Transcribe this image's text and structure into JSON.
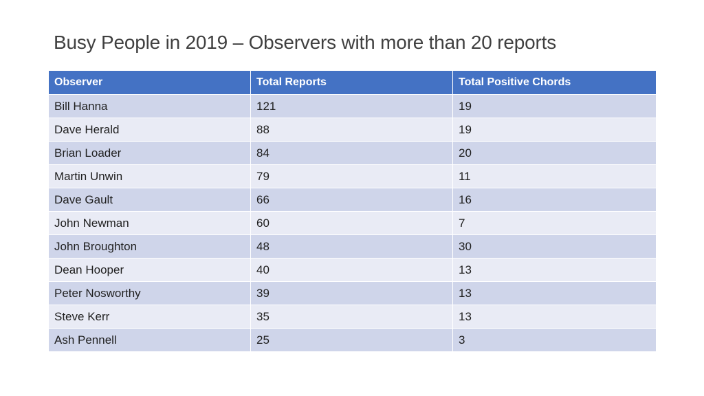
{
  "slide": {
    "title": "Busy People in 2019 – Observers with more than 20 reports"
  },
  "table": {
    "columns": [
      "Observer",
      "Total Reports",
      "Total Positive Chords"
    ],
    "rows": [
      [
        "Bill Hanna",
        "121",
        "19"
      ],
      [
        "Dave Herald",
        "88",
        "19"
      ],
      [
        "Brian Loader",
        "84",
        "20"
      ],
      [
        "Martin Unwin",
        "79",
        "11"
      ],
      [
        "Dave Gault",
        "66",
        "16"
      ],
      [
        "John Newman",
        "60",
        "7"
      ],
      [
        "John Broughton",
        "48",
        "30"
      ],
      [
        "Dean Hooper",
        "40",
        "13"
      ],
      [
        "Peter Nosworthy",
        "39",
        "13"
      ],
      [
        "Steve Kerr",
        "35",
        "13"
      ],
      [
        "Ash Pennell",
        "25",
        "3"
      ]
    ]
  },
  "colors": {
    "header_bg": "#4472c4",
    "row_dark": "#cfd5ea",
    "row_light": "#e9ebf5"
  }
}
